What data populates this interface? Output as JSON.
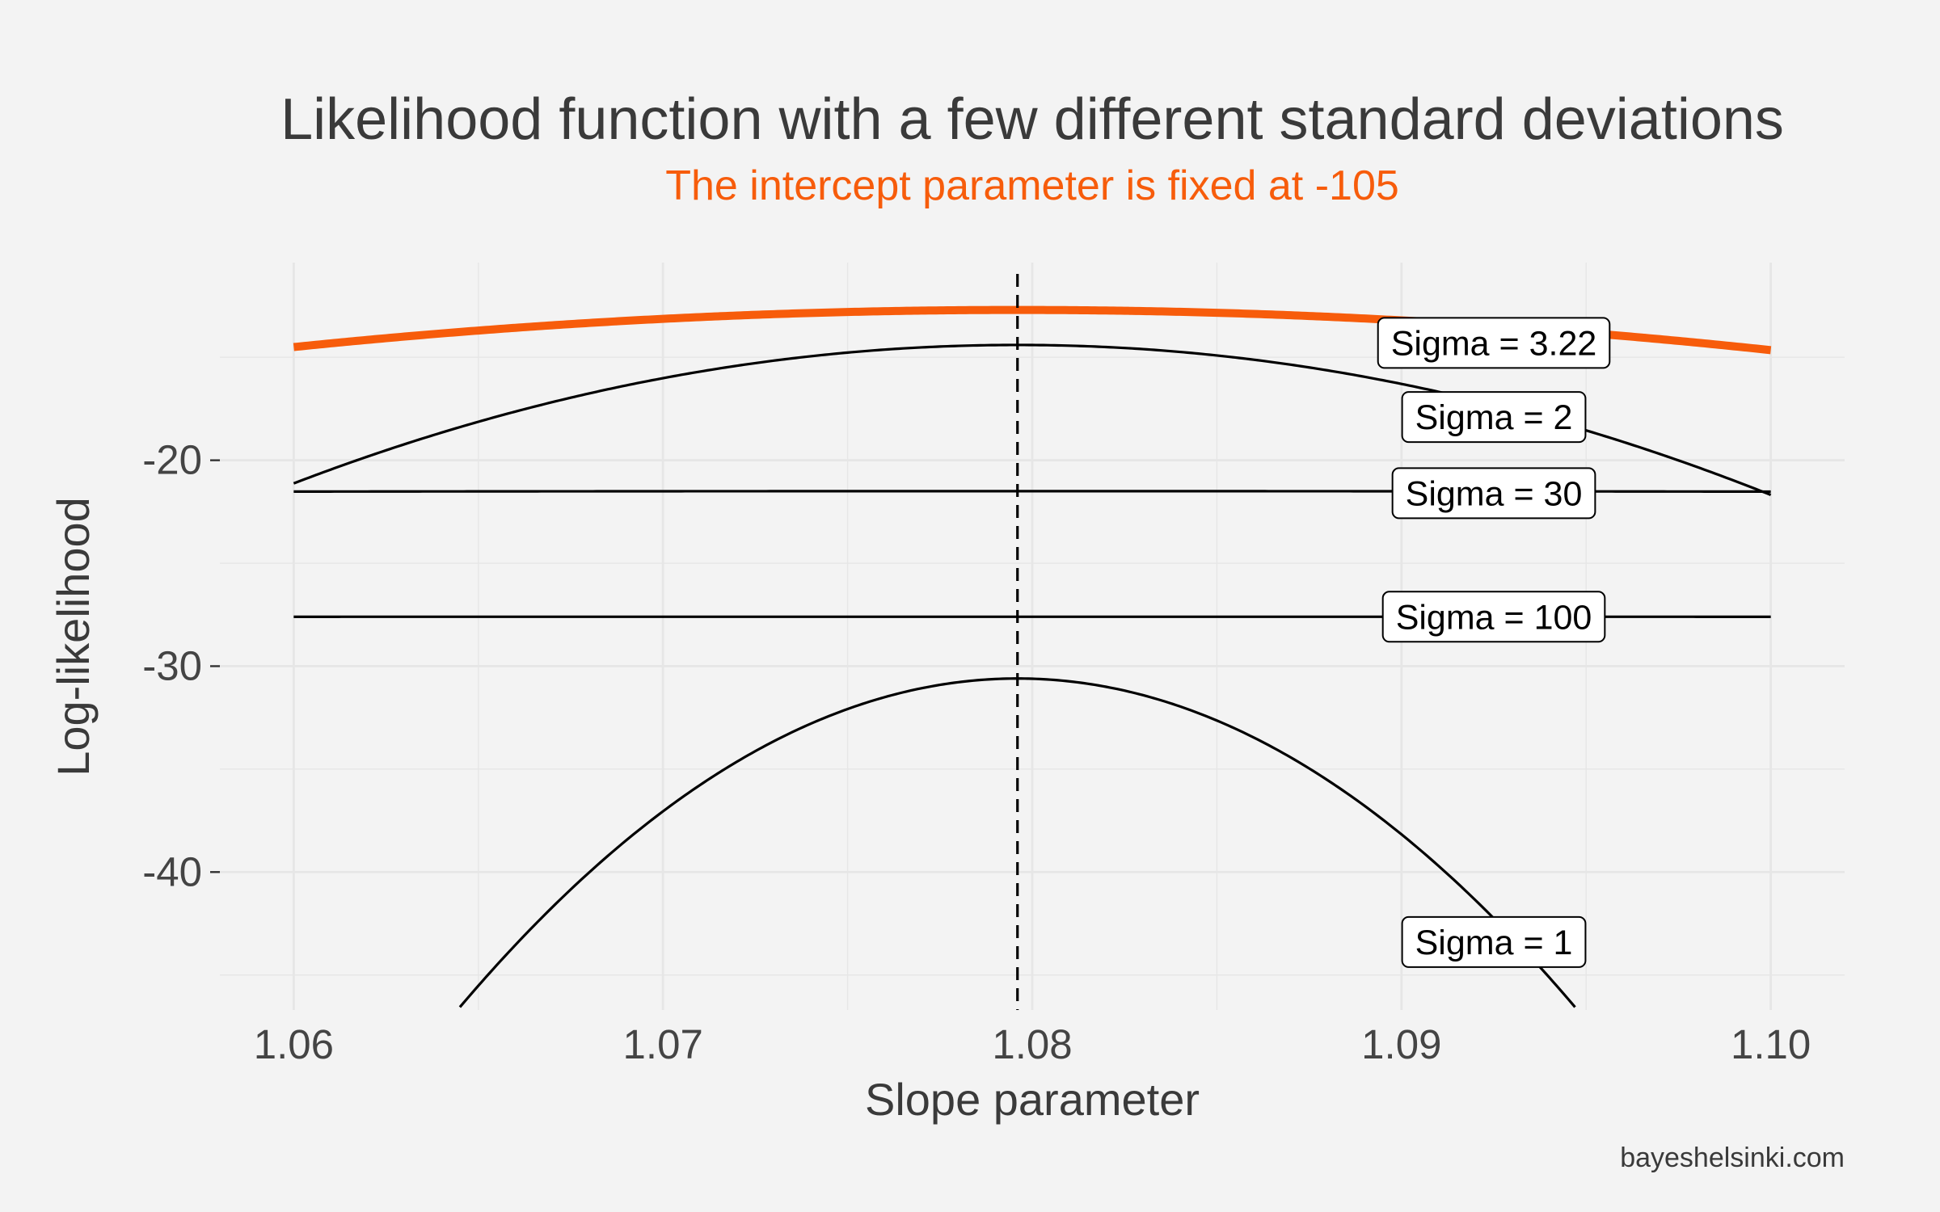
{
  "chart_data": {
    "type": "line",
    "title": "Likelihood function with a few different standard deviations",
    "subtitle": "The intercept parameter is fixed at -105",
    "xlabel": "Slope parameter",
    "ylabel": "Log-likelihood",
    "caption": "bayeshelsinki.com",
    "xlim": [
      1.058,
      1.102
    ],
    "ylim": [
      -46.7,
      -10.4
    ],
    "x_ticks": [
      1.06,
      1.07,
      1.08,
      1.09,
      1.1
    ],
    "x_tick_labels": [
      "1.06",
      "1.07",
      "1.08",
      "1.09",
      "1.10"
    ],
    "y_ticks": [
      -20,
      -30,
      -40
    ],
    "y_tick_labels": [
      "-20",
      "-30",
      "-40"
    ],
    "grid": true,
    "vline_x": 1.0796,
    "series": [
      {
        "name": "Sigma = 3.22",
        "label": "Sigma = 3.22",
        "highlight": true,
        "peak": [
          1.0796,
          -12.7
        ],
        "curvature": 4690,
        "x_range": [
          1.06,
          1.1
        ],
        "label_at": [
          1.0925,
          -14.3
        ]
      },
      {
        "name": "Sigma = 2",
        "label": "Sigma = 2",
        "highlight": false,
        "peak": [
          1.0796,
          -14.4
        ],
        "curvature": 17500,
        "x_range": [
          1.06,
          1.1
        ],
        "label_at": [
          1.0925,
          -17.9
        ]
      },
      {
        "name": "Sigma = 30",
        "label": "Sigma = 30",
        "highlight": false,
        "peak": [
          1.0796,
          -21.5
        ],
        "curvature": 55,
        "x_range": [
          1.06,
          1.1
        ],
        "label_at": [
          1.0925,
          -21.6
        ]
      },
      {
        "name": "Sigma = 100",
        "label": "Sigma = 100",
        "highlight": false,
        "peak": [
          1.0796,
          -27.6
        ],
        "curvature": 5,
        "x_range": [
          1.06,
          1.1
        ],
        "label_at": [
          1.0925,
          -27.6
        ]
      },
      {
        "name": "Sigma = 1",
        "label": "Sigma = 1",
        "highlight": false,
        "peak": [
          1.0796,
          -30.6
        ],
        "curvature": 70000,
        "x_range": [
          1.06,
          1.1
        ],
        "label_at": [
          1.0925,
          -43.4
        ]
      }
    ],
    "colors": {
      "highlight": "#f75c0b",
      "line": "#000000",
      "background": "#f3f3f3",
      "grid": "#e6e6e6"
    }
  }
}
